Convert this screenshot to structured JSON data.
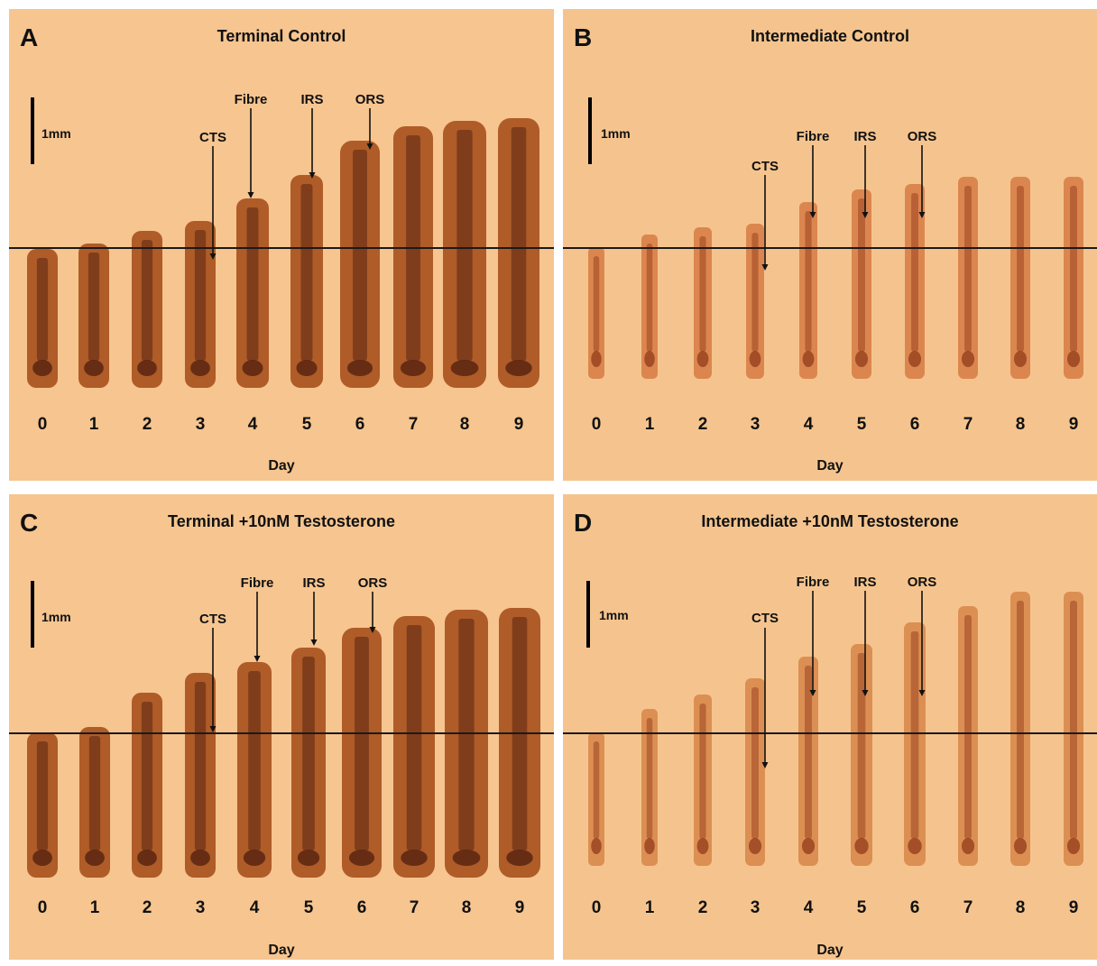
{
  "panels": [
    {
      "letter": "A",
      "title": "Terminal Control",
      "scale_label": "1mm",
      "axis_label": "Day",
      "days": [
        "0",
        "1",
        "2",
        "3",
        "4",
        "5",
        "6",
        "7",
        "8",
        "9"
      ],
      "annotations": {
        "cts": "CTS",
        "fibre": "Fibre",
        "irs": "IRS",
        "ors": "ORS"
      }
    },
    {
      "letter": "B",
      "title": "Intermediate Control",
      "scale_label": "1mm",
      "axis_label": "Day",
      "days": [
        "0",
        "1",
        "2",
        "3",
        "4",
        "5",
        "6",
        "7",
        "8",
        "9"
      ],
      "annotations": {
        "cts": "CTS",
        "fibre": "Fibre",
        "irs": "IRS",
        "ors": "ORS"
      }
    },
    {
      "letter": "C",
      "title": "Terminal +10nM Testosterone",
      "scale_label": "1mm",
      "axis_label": "Day",
      "days": [
        "0",
        "1",
        "2",
        "3",
        "4",
        "5",
        "6",
        "7",
        "8",
        "9"
      ],
      "annotations": {
        "cts": "CTS",
        "fibre": "Fibre",
        "irs": "IRS",
        "ors": "ORS"
      }
    },
    {
      "letter": "D",
      "title": "Intermediate +10nM Testosterone",
      "scale_label": "1mm",
      "axis_label": "Day",
      "days": [
        "0",
        "1",
        "2",
        "3",
        "4",
        "5",
        "6",
        "7",
        "8",
        "9"
      ],
      "annotations": {
        "cts": "CTS",
        "fibre": "Fibre",
        "irs": "IRS",
        "ors": "ORS"
      }
    }
  ],
  "colors": {
    "background": "#f6c590",
    "terminal_follicle": "#a8521f",
    "terminal_core": "#5a2410",
    "intermediate_follicle": "#d9804a",
    "intermediate_core": "#9a4420",
    "testosterone_intermediate": "#d98a4e"
  }
}
